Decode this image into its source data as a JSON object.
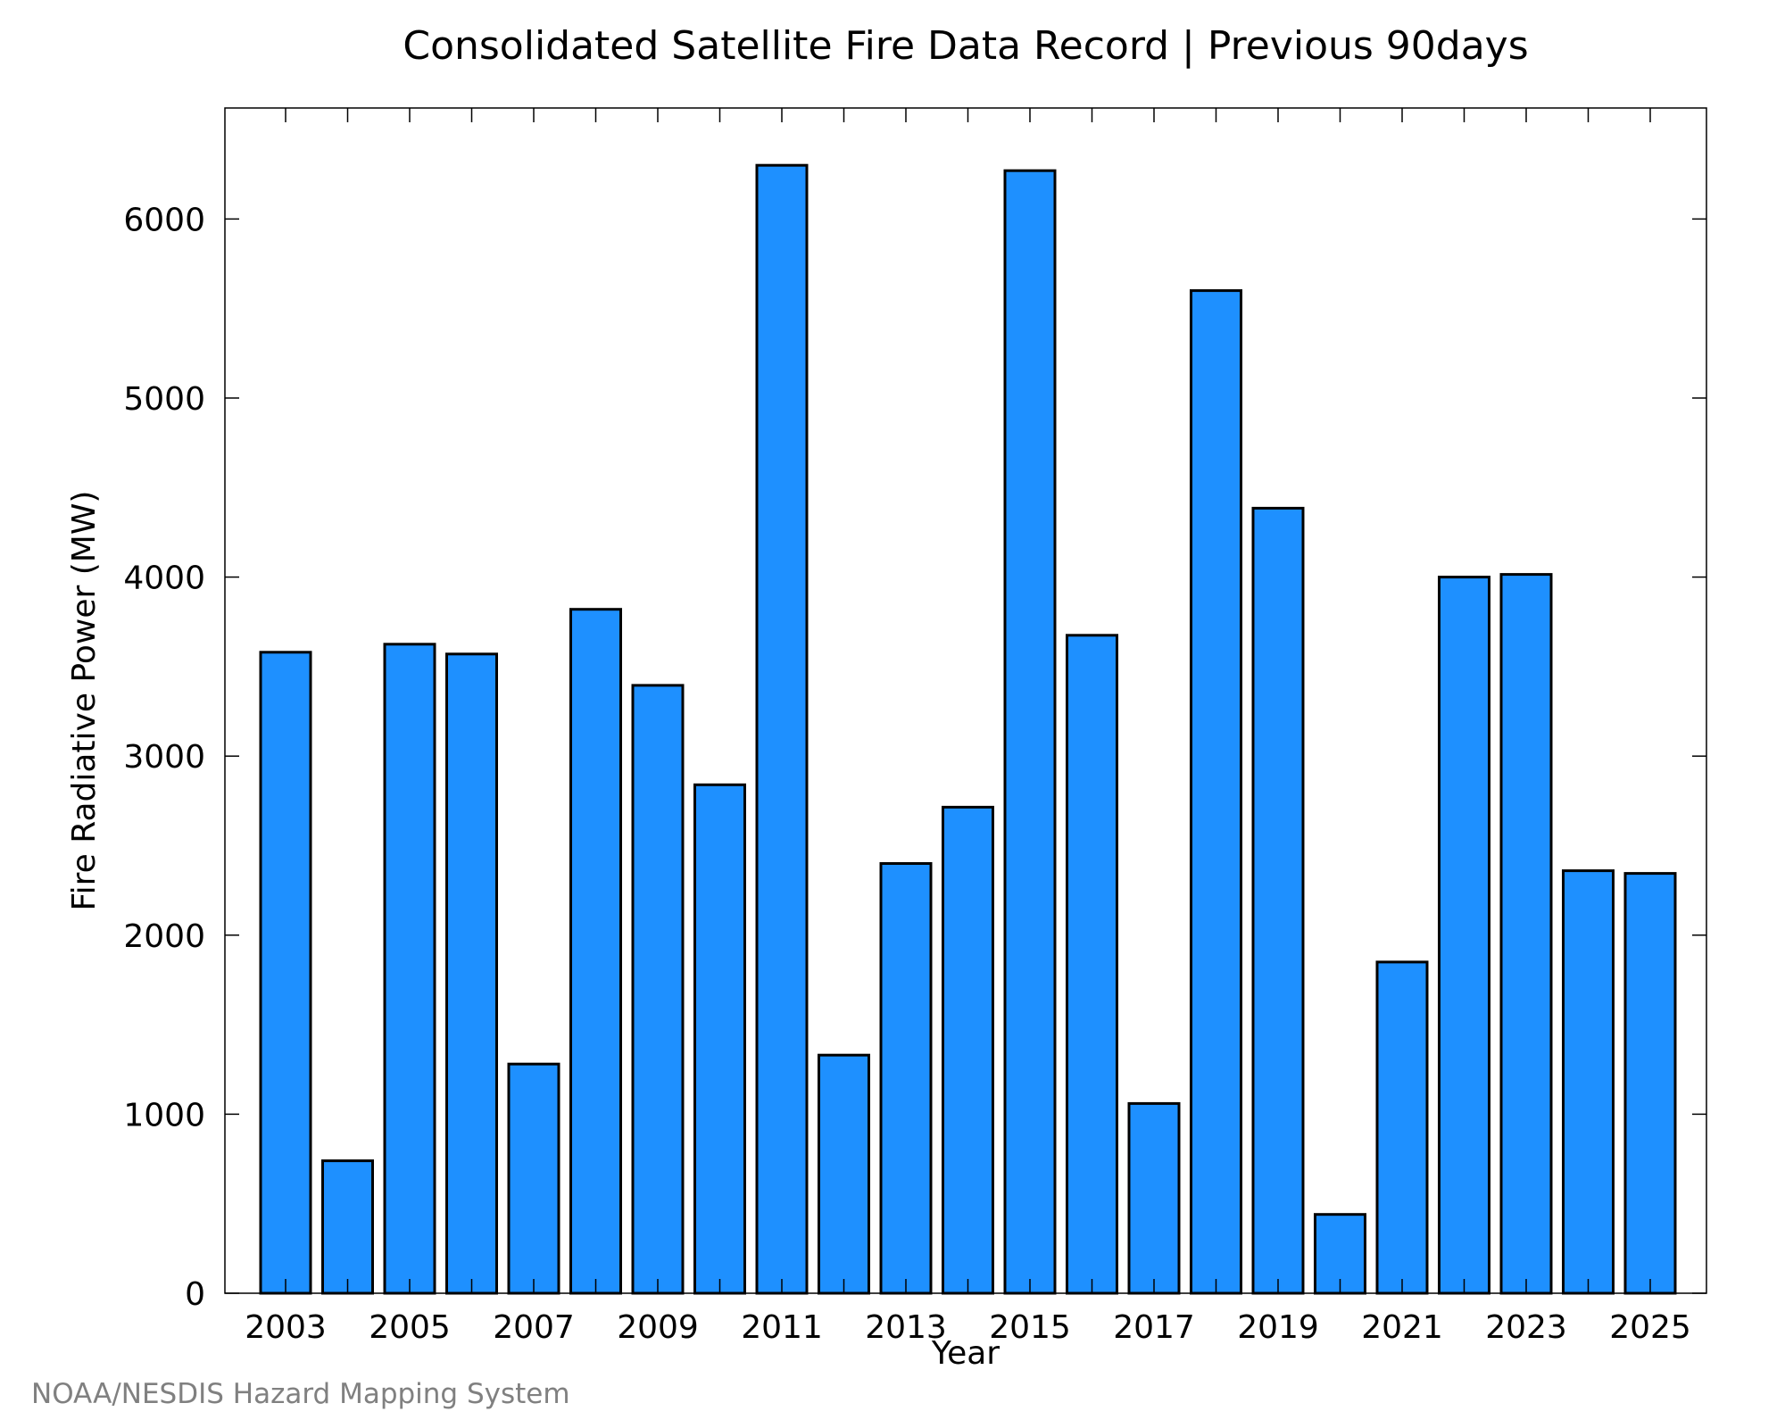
{
  "chart_data": {
    "type": "bar",
    "title": "Consolidated Satellite Fire Data Record | Previous 90days",
    "xlabel": "Year",
    "ylabel": "Fire Radiative Power (MW)",
    "footer": "NOAA/NESDIS Hazard Mapping System",
    "categories": [
      "2003",
      "2004",
      "2005",
      "2006",
      "2007",
      "2008",
      "2009",
      "2010",
      "2011",
      "2012",
      "2013",
      "2014",
      "2015",
      "2016",
      "2017",
      "2018",
      "2019",
      "2020",
      "2021",
      "2022",
      "2023",
      "2024",
      "2025"
    ],
    "values": [
      3580,
      740,
      3625,
      3570,
      1280,
      3820,
      3395,
      2840,
      6300,
      1330,
      2400,
      2715,
      6270,
      3675,
      1060,
      5600,
      4385,
      440,
      1850,
      4000,
      4015,
      2360,
      2345
    ],
    "x_tick_labels": [
      "2003",
      "2005",
      "2007",
      "2009",
      "2011",
      "2013",
      "2015",
      "2017",
      "2019",
      "2021",
      "2023",
      "2025"
    ],
    "y_ticks": [
      0,
      1000,
      2000,
      3000,
      4000,
      5000,
      6000
    ],
    "ylim": [
      0,
      6620
    ],
    "grid": false,
    "legend": "none",
    "bar_color": "#1e90ff",
    "bar_edge_color": "#000000"
  }
}
